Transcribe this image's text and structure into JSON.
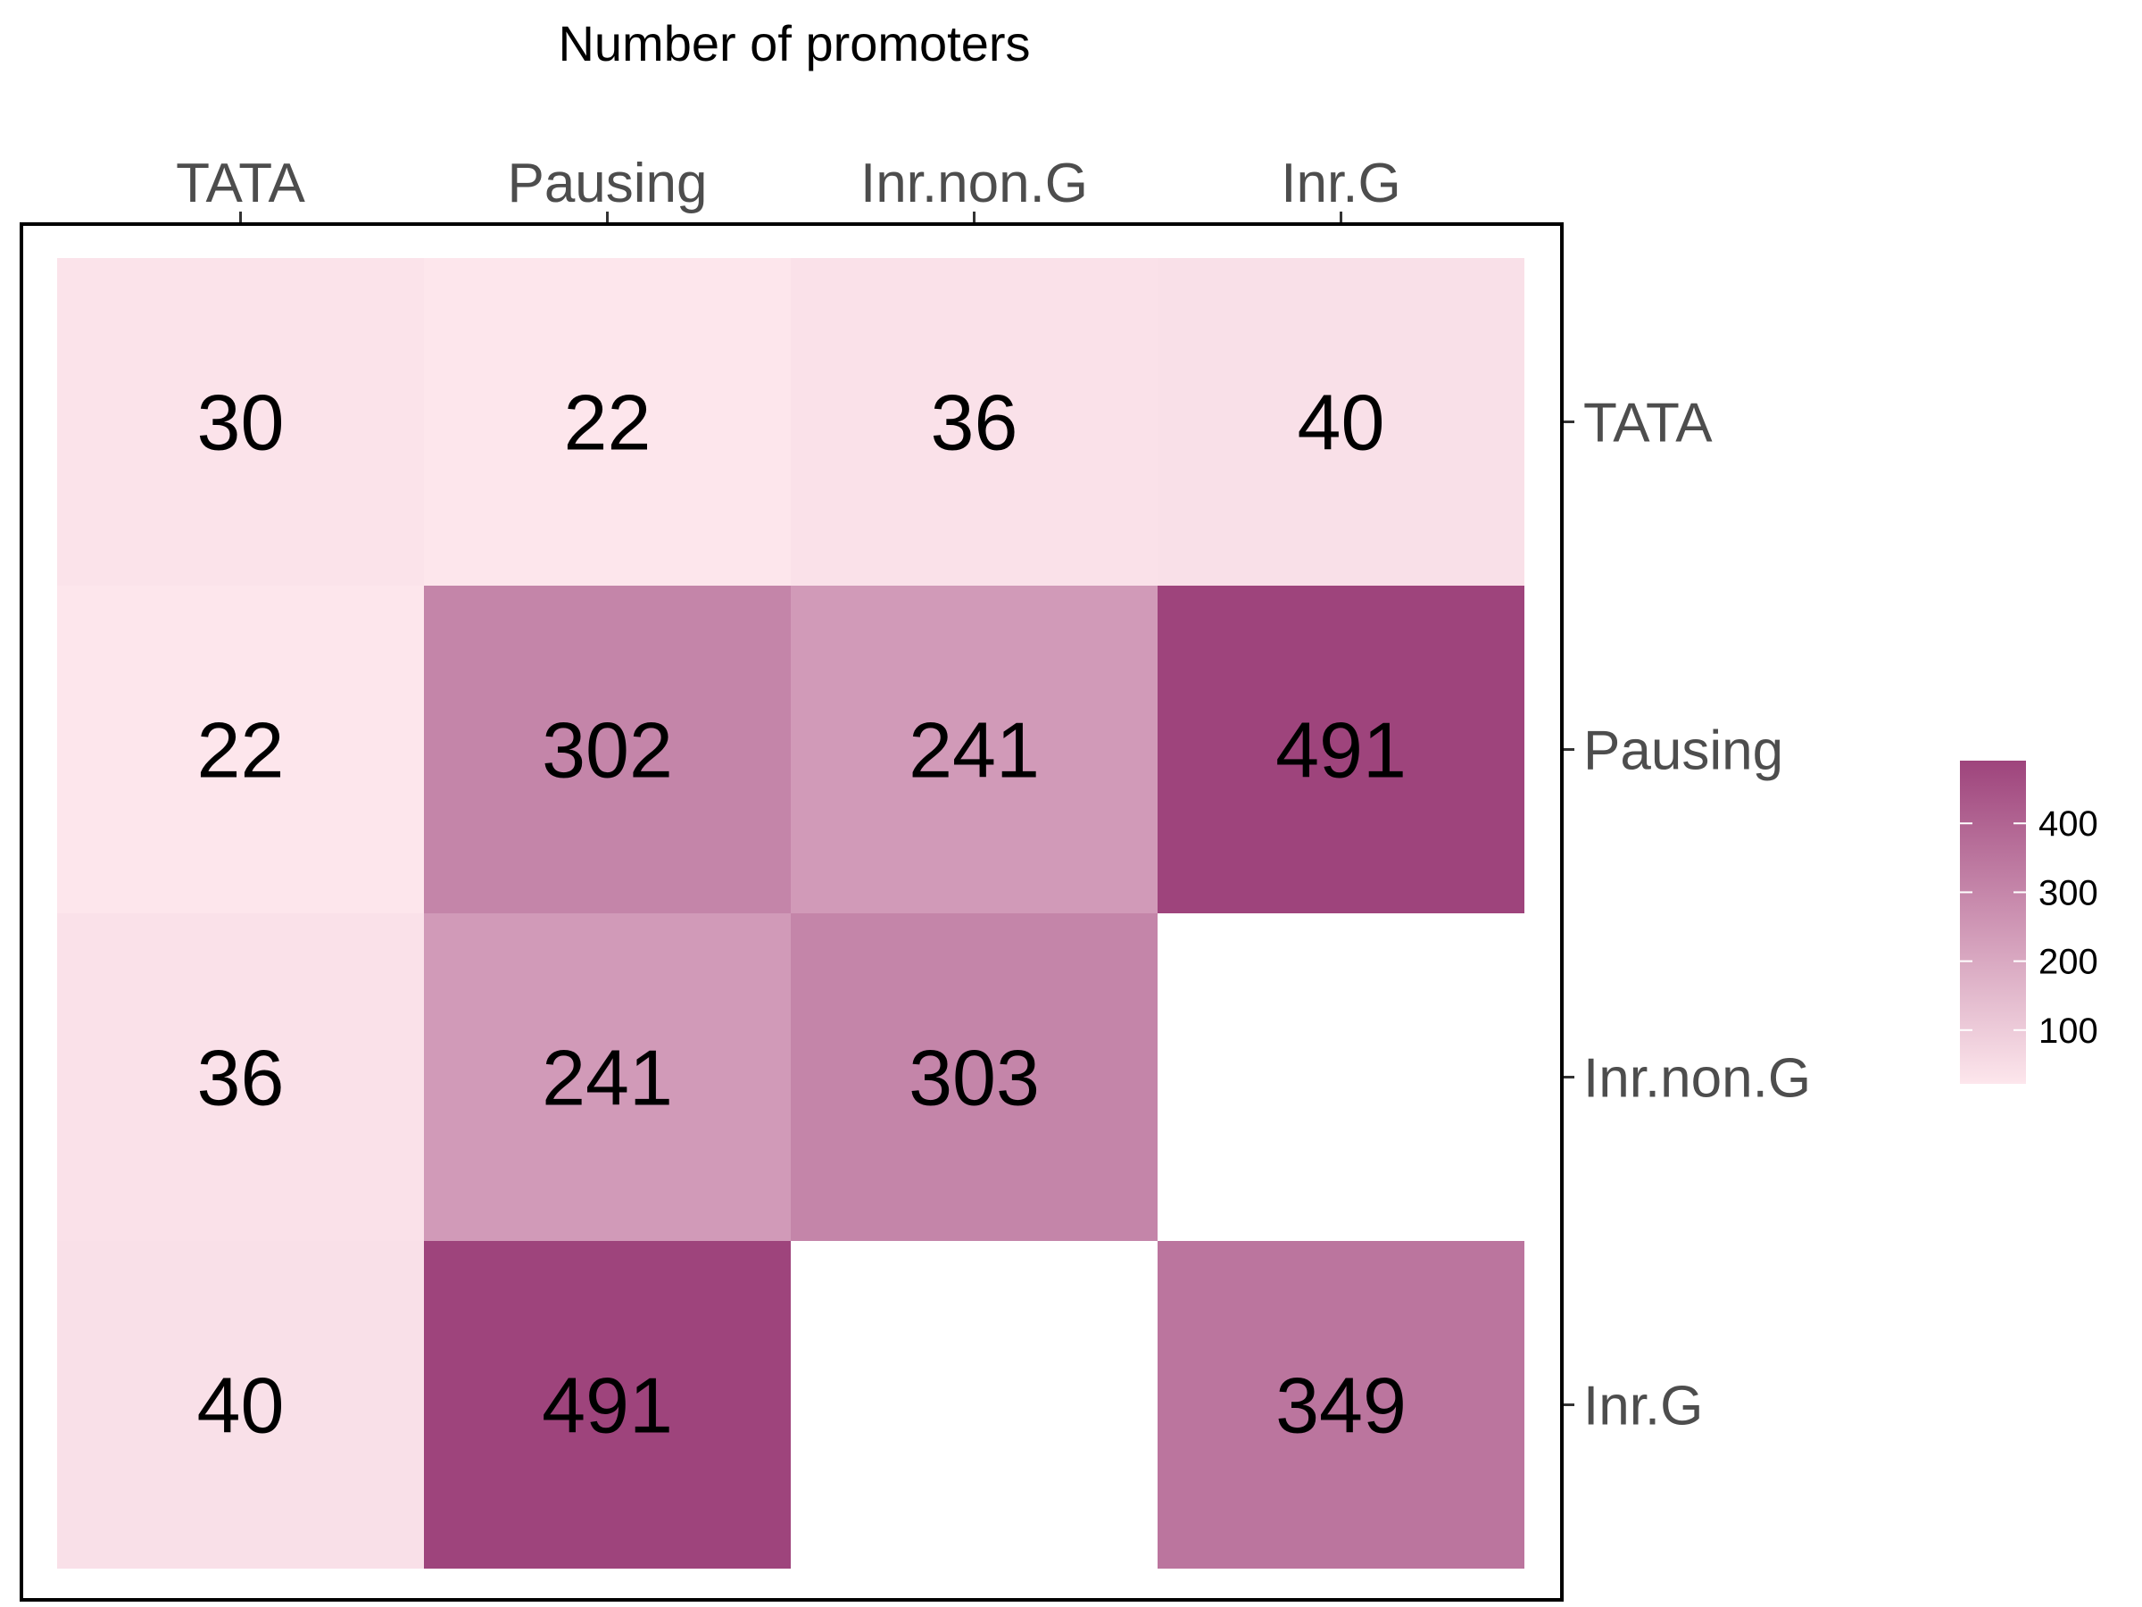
{
  "chart_data": {
    "type": "heatmap",
    "title": "Number of promoters",
    "x_categories": [
      "TATA",
      "Pausing",
      "Inr.non.G",
      "Inr.G"
    ],
    "y_categories": [
      "TATA",
      "Pausing",
      "Inr.non.G",
      "Inr.G"
    ],
    "x_axis_position": "top",
    "y_axis_position": "right",
    "cells": [
      {
        "row": "TATA",
        "col": "TATA",
        "value": 30
      },
      {
        "row": "TATA",
        "col": "Pausing",
        "value": 22
      },
      {
        "row": "TATA",
        "col": "Inr.non.G",
        "value": 36
      },
      {
        "row": "TATA",
        "col": "Inr.G",
        "value": 40
      },
      {
        "row": "Pausing",
        "col": "TATA",
        "value": 22
      },
      {
        "row": "Pausing",
        "col": "Pausing",
        "value": 302
      },
      {
        "row": "Pausing",
        "col": "Inr.non.G",
        "value": 241
      },
      {
        "row": "Pausing",
        "col": "Inr.G",
        "value": 491
      },
      {
        "row": "Inr.non.G",
        "col": "TATA",
        "value": 36
      },
      {
        "row": "Inr.non.G",
        "col": "Pausing",
        "value": 241
      },
      {
        "row": "Inr.non.G",
        "col": "Inr.non.G",
        "value": 303
      },
      {
        "row": "Inr.G",
        "col": "TATA",
        "value": 40
      },
      {
        "row": "Inr.G",
        "col": "Pausing",
        "value": 491
      },
      {
        "row": "Inr.G",
        "col": "Inr.G",
        "value": 349
      }
    ],
    "color_scale": {
      "low": "#fde6ec",
      "high": "#9e447c",
      "domain": [
        22,
        491
      ]
    },
    "legend": {
      "ticks": [
        100,
        200,
        300,
        400
      ],
      "position": "right"
    },
    "grid": false
  }
}
